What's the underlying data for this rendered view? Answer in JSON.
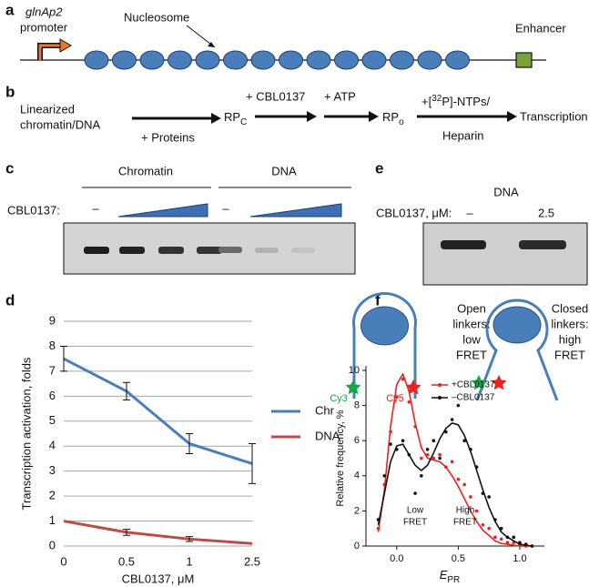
{
  "panels": {
    "a": {
      "label": "a",
      "promoter": [
        "glnAp2",
        "promoter"
      ],
      "nucleosome": "Nucleosome",
      "enhancer": "Enhancer"
    },
    "b": {
      "label": "b",
      "input": [
        "Linearized",
        "chromatin/DNA"
      ],
      "proteins": "+ Proteins",
      "rpc": "RP",
      "rpc_sub": "C",
      "cbl": "+ CBL0137",
      "atp": "+ ATP",
      "rpo": "RP",
      "rpo_sub": "o",
      "ntps_pre": "+[",
      "ntps_sup": "32",
      "ntps_post": "P]-NTPs/",
      "heparin": "Heparin",
      "product": "Transcription"
    },
    "c": {
      "label": "c",
      "chromatin": "Chromatin",
      "dna": "DNA",
      "treatment": "CBL0137:",
      "none_chromatin": "–",
      "none_dna": "–"
    },
    "d": {
      "label": "d"
    },
    "e": {
      "label": "e",
      "dna": "DNA",
      "treatment": "CBL0137, μM:",
      "lanes": [
        "–",
        "2.5"
      ]
    },
    "f": {
      "label": "f",
      "open": [
        "Open",
        "linkers:",
        "low",
        "FRET"
      ],
      "closed": [
        "Closed",
        "linkers:",
        "high",
        "FRET"
      ],
      "cy3": "Cy3",
      "cy5": "Cy5"
    }
  },
  "chart_data": [
    {
      "type": "line",
      "ylabel": "Transcription activation, folds",
      "xlabel": "CBL0137, μM",
      "categories": [
        "0",
        "0.5",
        "1",
        "2.5"
      ],
      "ylim": [
        0,
        9
      ],
      "yticks": [
        0,
        1,
        2,
        3,
        4,
        5,
        6,
        7,
        8,
        9
      ],
      "grid": true,
      "legend": "right",
      "series": [
        {
          "name": "Chr",
          "color": "#4a7ebb",
          "values": [
            7.5,
            6.2,
            4.1,
            3.3
          ],
          "errors": [
            0.5,
            0.35,
            0.4,
            0.8
          ]
        },
        {
          "name": "DNA",
          "color": "#be4b48",
          "values": [
            1.0,
            0.55,
            0.28,
            0.1
          ],
          "errors": [
            null,
            0.12,
            0.1,
            null
          ]
        }
      ]
    },
    {
      "type": "scatter",
      "ylabel": "Relative frequency, %",
      "xlabel": "E",
      "xlabel_sub": "PR",
      "xlim": [
        -0.25,
        1.2
      ],
      "xticks": [
        {
          "value": 0,
          "label": "0.0"
        },
        {
          "value": 0.5,
          "label": "0.5"
        },
        {
          "value": 1,
          "label": "1.0"
        }
      ],
      "ylim": [
        0,
        10
      ],
      "yticks": [
        0,
        2,
        4,
        6,
        8,
        10
      ],
      "legend": "upper right",
      "annotations": [
        [
          "Low",
          "FRET"
        ],
        [
          "High",
          "FRET"
        ]
      ],
      "x": [
        -0.15,
        -0.1,
        -0.05,
        0,
        0.05,
        0.1,
        0.15,
        0.2,
        0.25,
        0.3,
        0.35,
        0.4,
        0.45,
        0.5,
        0.55,
        0.6,
        0.65,
        0.7,
        0.75,
        0.8,
        0.85,
        0.9,
        0.95,
        1.0,
        1.05,
        1.1
      ],
      "series": [
        {
          "name": "+CBL0137",
          "color": "#e8231f",
          "values": [
            1.0,
            3.5,
            6.5,
            8.5,
            9.5,
            8.2,
            6.8,
            5.0,
            5.2,
            5.0,
            5.2,
            4.5,
            4.8,
            3.8,
            3.5,
            2.8,
            2.0,
            1.2,
            1.0,
            0.5,
            0.4,
            0.2,
            0.2,
            0.1,
            0,
            0
          ],
          "fit": [
            0.8,
            3.2,
            6.8,
            9.2,
            9.8,
            8.8,
            7.0,
            5.6,
            5.0,
            4.9,
            4.8,
            4.5,
            4.0,
            3.4,
            2.7,
            2.0,
            1.4,
            0.9,
            0.6,
            0.3,
            0.15,
            0.1,
            0.05,
            0,
            0,
            0
          ]
        },
        {
          "name": "–CBL0137",
          "color": "#111111",
          "values": [
            1.5,
            4.0,
            5.8,
            5.5,
            6.0,
            5.2,
            3.0,
            4.0,
            5.5,
            6.0,
            5.0,
            6.5,
            7.2,
            8.0,
            6.0,
            5.5,
            4.5,
            3.0,
            2.8,
            1.5,
            1.0,
            0.5,
            0.5,
            0.2,
            0.1,
            0
          ],
          "fit": [
            1.2,
            3.0,
            4.8,
            5.7,
            5.8,
            5.2,
            4.6,
            4.3,
            4.6,
            5.3,
            6.1,
            6.7,
            7.0,
            6.9,
            6.3,
            5.4,
            4.3,
            3.2,
            2.2,
            1.4,
            0.8,
            0.5,
            0.3,
            0.1,
            0.05,
            0
          ]
        }
      ]
    }
  ]
}
